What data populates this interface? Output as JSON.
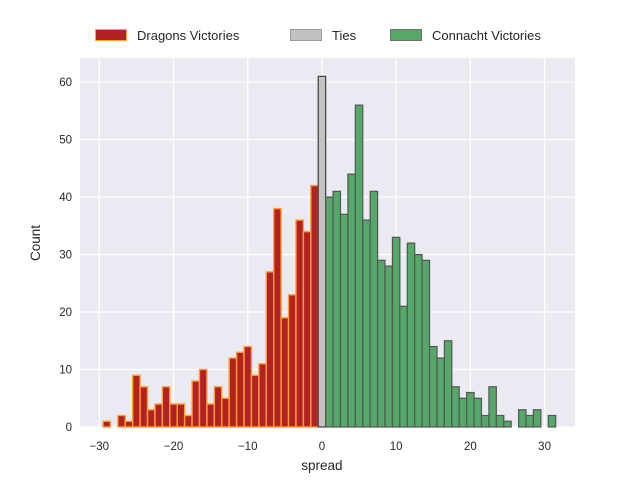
{
  "chart_data": {
    "type": "bar",
    "subtype": "histogram",
    "title": "",
    "xlabel": "spread",
    "ylabel": "Count",
    "xlim": [
      -32.6,
      34.1
    ],
    "ylim": [
      0,
      64.2
    ],
    "xticks": [
      -30,
      -20,
      -10,
      0,
      10,
      20,
      30
    ],
    "yticks": [
      0,
      10,
      20,
      30,
      40,
      50,
      60
    ],
    "grid": true,
    "plot_background": "#EAEAF2",
    "grid_color": "#FFFFFF",
    "bin_width": 1,
    "legend_position": "top",
    "legend": [
      {
        "label": "Dragons Victories",
        "fill": "#B22222",
        "edge": "#FFA033"
      },
      {
        "label": "Ties",
        "fill": "#C2C2C2",
        "edge": "#9A9A9A"
      },
      {
        "label": "Connacht Victories",
        "fill": "#55A868",
        "edge": "#6E6E6E"
      }
    ],
    "series": [
      {
        "name": "Dragons Victories",
        "fill": "#B22222",
        "edge": "#FFA033",
        "spreads": [
          -29,
          -28,
          -27,
          -26,
          -25,
          -24,
          -23,
          -22,
          -21,
          -20,
          -19,
          -18,
          -17,
          -16,
          -15,
          -14,
          -13,
          -12,
          -11,
          -10,
          -9,
          -8,
          -7,
          -6,
          -5,
          -4,
          -3,
          -2,
          -1
        ],
        "counts": [
          1,
          0,
          2,
          1,
          9,
          7,
          3,
          4,
          7,
          4,
          4,
          2,
          8,
          10,
          4,
          7,
          5,
          12,
          13,
          14,
          9,
          11,
          27,
          38,
          19,
          23,
          36,
          34,
          42
        ]
      },
      {
        "name": "Ties",
        "fill": "#C2C2C2",
        "edge": "#3F3F3F",
        "spreads": [
          0
        ],
        "counts": [
          61
        ]
      },
      {
        "name": "Connacht Victories",
        "fill": "#55A868",
        "edge": "#555555",
        "spreads": [
          1,
          2,
          3,
          4,
          5,
          6,
          7,
          8,
          9,
          10,
          11,
          12,
          13,
          14,
          15,
          16,
          17,
          18,
          19,
          20,
          21,
          22,
          23,
          24,
          25,
          26,
          27,
          28,
          29,
          30,
          31
        ],
        "counts": [
          40,
          41,
          37,
          44,
          56,
          36,
          41,
          29,
          28,
          33,
          21,
          32,
          30,
          29,
          14,
          12,
          15,
          7,
          5,
          6,
          5,
          2,
          7,
          2,
          1,
          0,
          3,
          2,
          3,
          0,
          2
        ]
      }
    ]
  }
}
